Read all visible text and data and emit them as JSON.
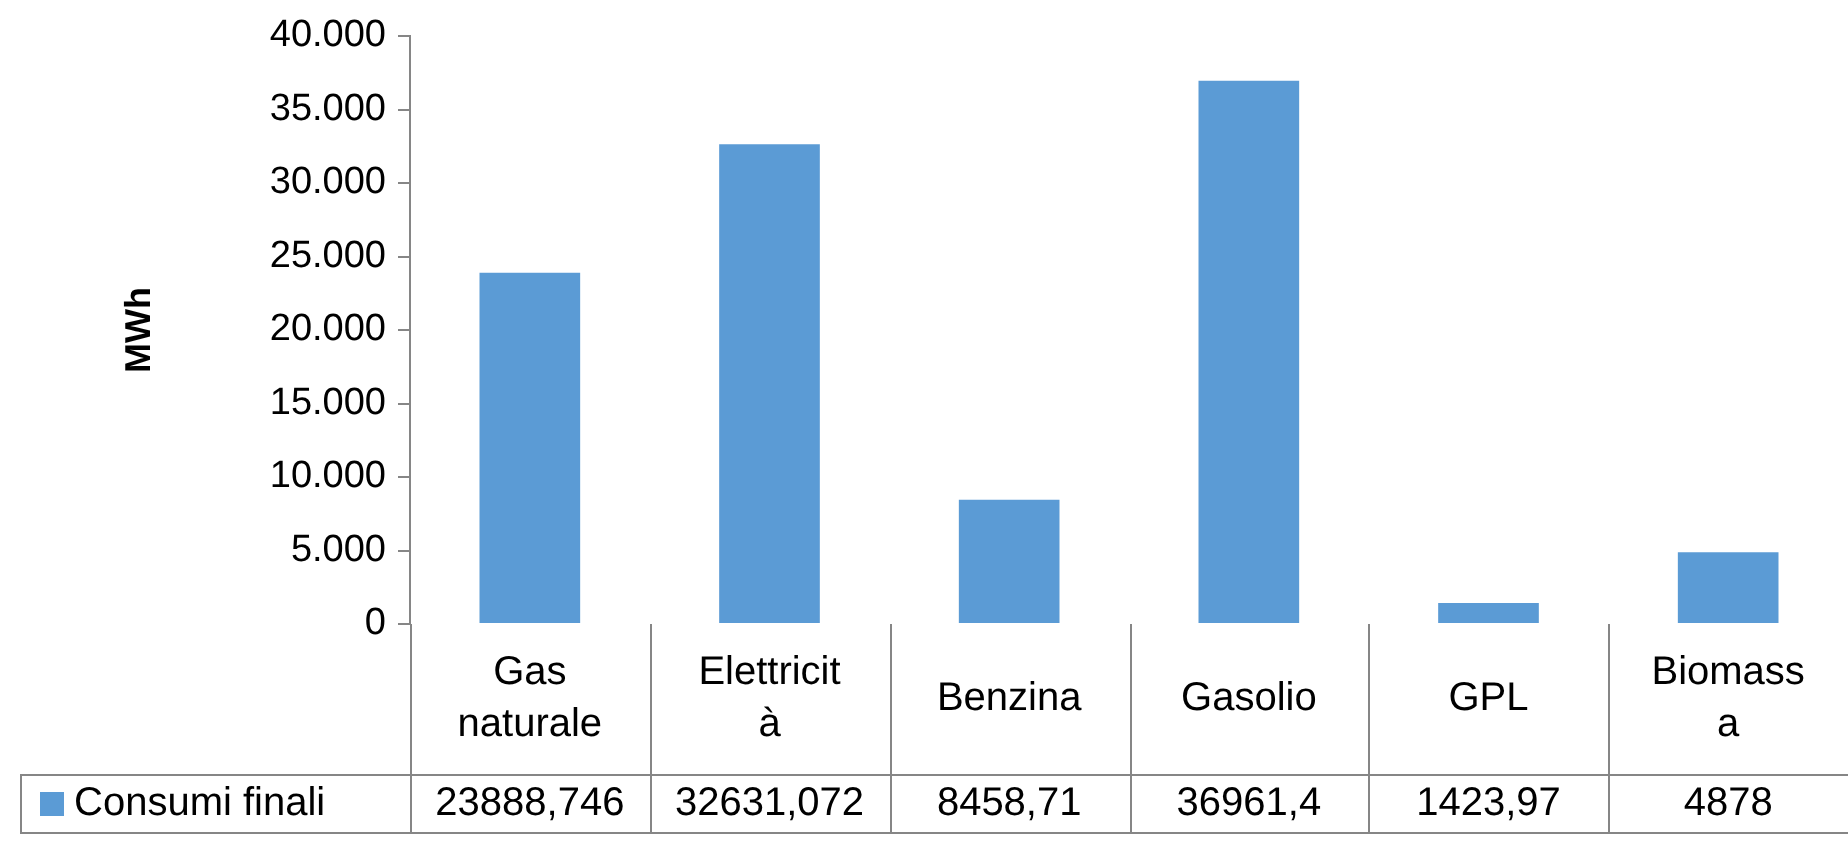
{
  "chart_data": {
    "type": "bar",
    "ylabel": "MWh",
    "categories": [
      "Gas naturale",
      "Elettricità",
      "Benzina",
      "Gasolio",
      "GPL",
      "Biomassa"
    ],
    "series": [
      {
        "name": "Consumi finali",
        "color": "#5b9bd5",
        "values": [
          23888.746,
          32631.072,
          8458.71,
          36961.4,
          1423.97,
          4878
        ],
        "value_labels": [
          "23888,746",
          "32631,072",
          "8458,71",
          "36961,4",
          "1423,97",
          "4878"
        ]
      }
    ],
    "ylim": [
      0,
      40000
    ],
    "yticks": [
      {
        "value": 0,
        "label": "0"
      },
      {
        "value": 5000,
        "label": "5.000"
      },
      {
        "value": 10000,
        "label": "10.000"
      },
      {
        "value": 15000,
        "label": "15.000"
      },
      {
        "value": 20000,
        "label": "20.000"
      },
      {
        "value": 25000,
        "label": "25.000"
      },
      {
        "value": 30000,
        "label": "30.000"
      },
      {
        "value": 35000,
        "label": "35.000"
      },
      {
        "value": 40000,
        "label": "40.000"
      }
    ],
    "grid": false,
    "legend": "bottom"
  }
}
